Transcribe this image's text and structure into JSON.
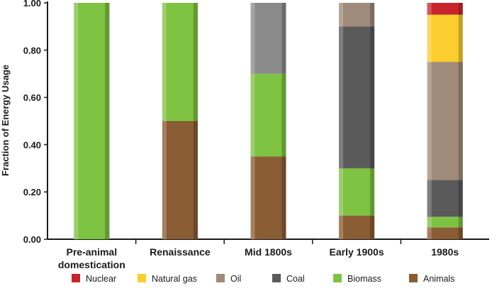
{
  "chart_data": {
    "type": "bar",
    "stacked": true,
    "title": "",
    "xlabel": "",
    "ylabel": "Fraction of Energy Usage",
    "ylim": [
      0,
      1
    ],
    "yticks": [
      "0.00",
      "0.20",
      "0.40",
      "0.60",
      "0.80",
      "1.00"
    ],
    "ytick_values": [
      0,
      0.2,
      0.4,
      0.6,
      0.8,
      1.0
    ],
    "categories": [
      "Pre-animal\ndomestication",
      "Renaissance",
      "Mid 1800s",
      "Early 1900s",
      "1980s"
    ],
    "series": [
      {
        "name": "Animals",
        "color": "#8a5c34",
        "values": [
          0.0,
          0.5,
          0.35,
          0.1,
          0.05
        ]
      },
      {
        "name": "Biomass",
        "color": "#7ec242",
        "values": [
          1.0,
          0.5,
          0.35,
          0.2,
          0.045
        ]
      },
      {
        "name": "Coal",
        "color": "#5a5a5a",
        "values": [
          0.0,
          0.0,
          0.3,
          0.6,
          0.155
        ]
      },
      {
        "name": "Oil",
        "color": "#a08b7a",
        "values": [
          0.0,
          0.0,
          0.0,
          0.1,
          0.5
        ]
      },
      {
        "name": "Natural gas",
        "color": "#fbcd2f",
        "values": [
          0.0,
          0.0,
          0.0,
          0.0,
          0.2
        ]
      },
      {
        "name": "Nuclear",
        "color": "#c8242b",
        "values": [
          0.0,
          0.0,
          0.0,
          0.0,
          0.05
        ]
      }
    ],
    "series_overrides": {
      "Coal_at_Mid 1800s": "#8a8a8a"
    },
    "legend": {
      "position": "bottom",
      "order": [
        "Nuclear",
        "Natural gas",
        "Oil",
        "Coal",
        "Biomass",
        "Animals"
      ]
    },
    "grid": false
  }
}
